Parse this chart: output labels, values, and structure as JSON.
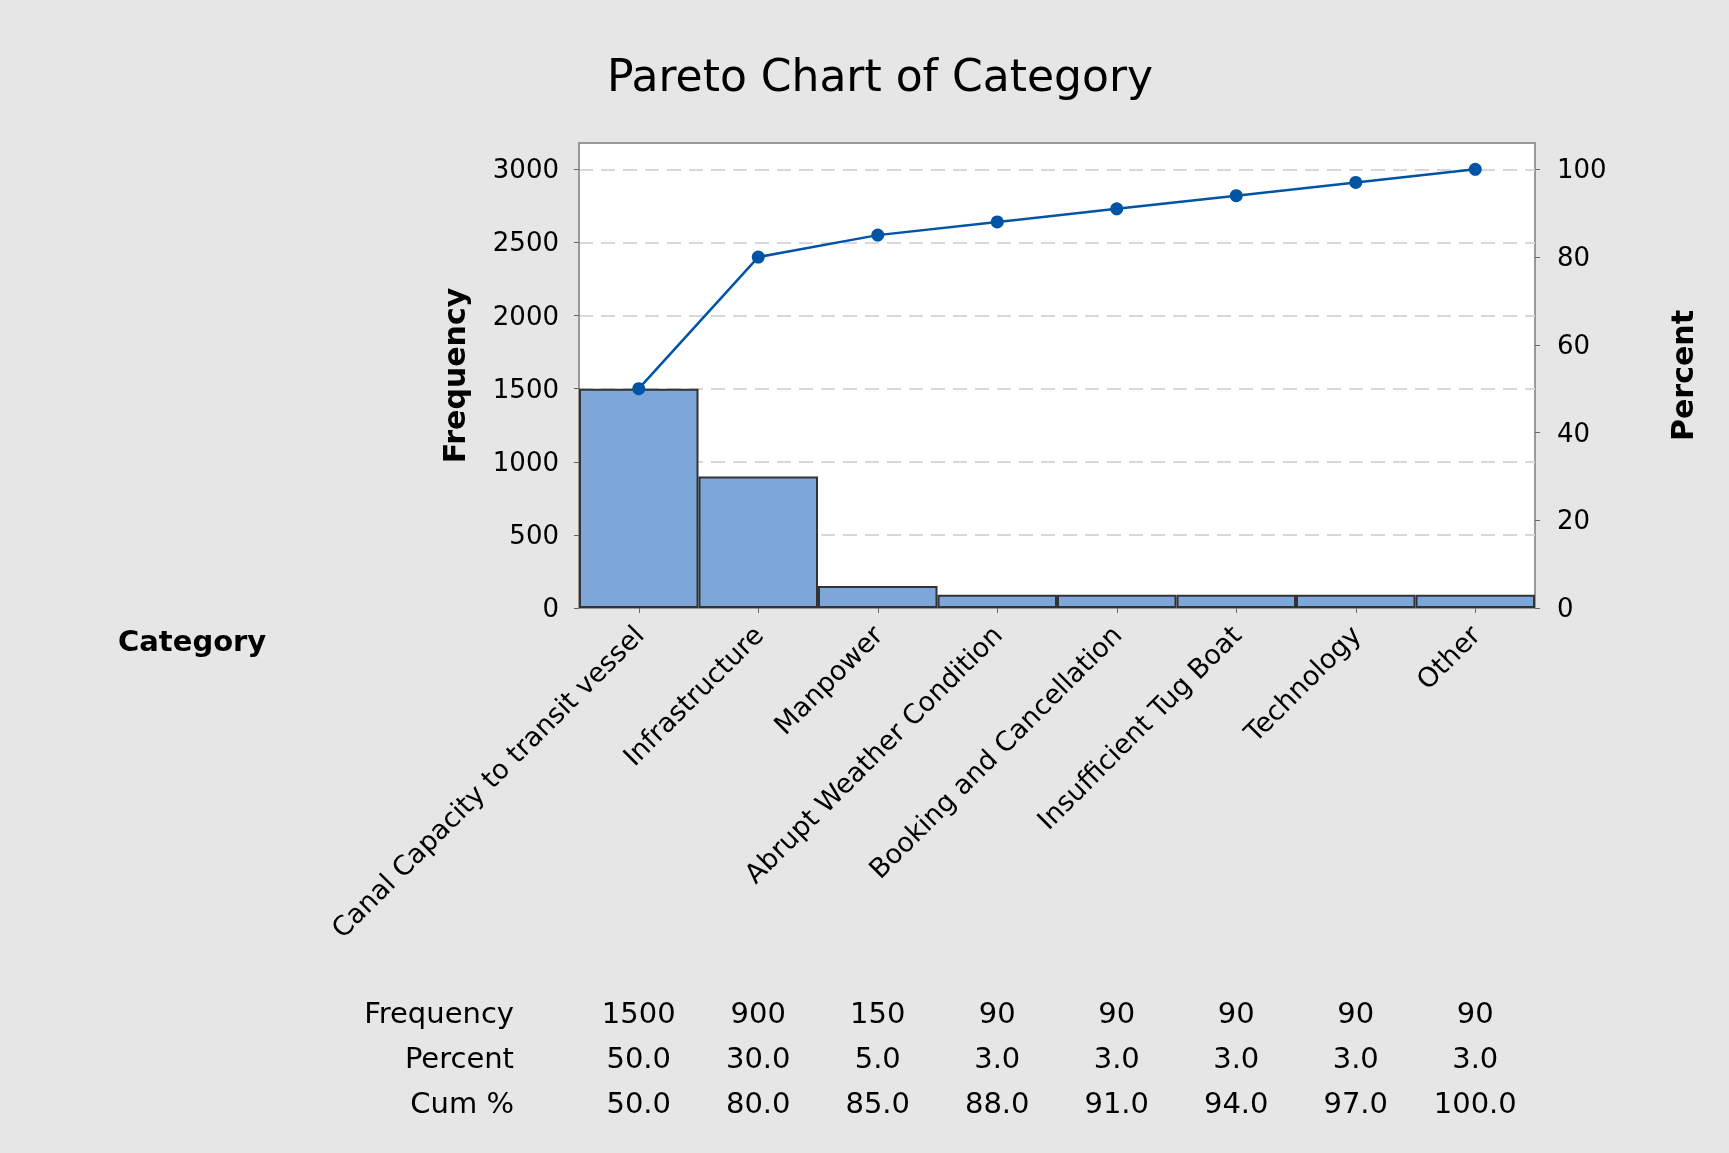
{
  "chart_data": {
    "type": "bar",
    "title": "Pareto Chart of Category",
    "xlabel": "Category",
    "ylabel": "Frequency",
    "y2label": "Percent",
    "categories": [
      "Canal Capacity to transit vessel",
      "Infrastructure",
      "Manpower",
      "Abrupt Weather Condition",
      "Booking and Cancellation",
      "Insufficient Tug Boat",
      "Technology",
      "Other"
    ],
    "series": [
      {
        "color": "#7da7d9",
        "values": [
          1500,
          900,
          150,
          90,
          90,
          90,
          90,
          90
        ],
        "value_labels": [
          "1500",
          "900",
          "150",
          "90",
          "90",
          "90",
          "90",
          "90"
        ]
      },
      {
        "type": "line",
        "axis": "y2",
        "color": "#0054a6",
        "values": [
          50,
          80,
          85,
          88,
          91,
          94,
          97,
          100
        ],
        "value_labels": [
          "50.0",
          "80.0",
          "85.0",
          "88.0",
          "91.0",
          "94.0",
          "97.0",
          "100.0"
        ]
      }
    ],
    "annotations": [
      "Frequency",
      "Percent",
      "Cum %",
      "50.0",
      "30.0",
      "5.0",
      "3.0",
      "3.0",
      "3.0",
      "3.0",
      "3.0"
    ],
    "ylim": [
      0,
      3180
    ],
    "yticks": [
      0,
      500,
      1000,
      1500,
      2000,
      2500,
      3000
    ],
    "y2lim": [
      0,
      106
    ],
    "y2ticks": [
      0,
      20,
      40,
      60,
      80,
      100
    ],
    "grid": "y",
    "marker": "circle"
  }
}
